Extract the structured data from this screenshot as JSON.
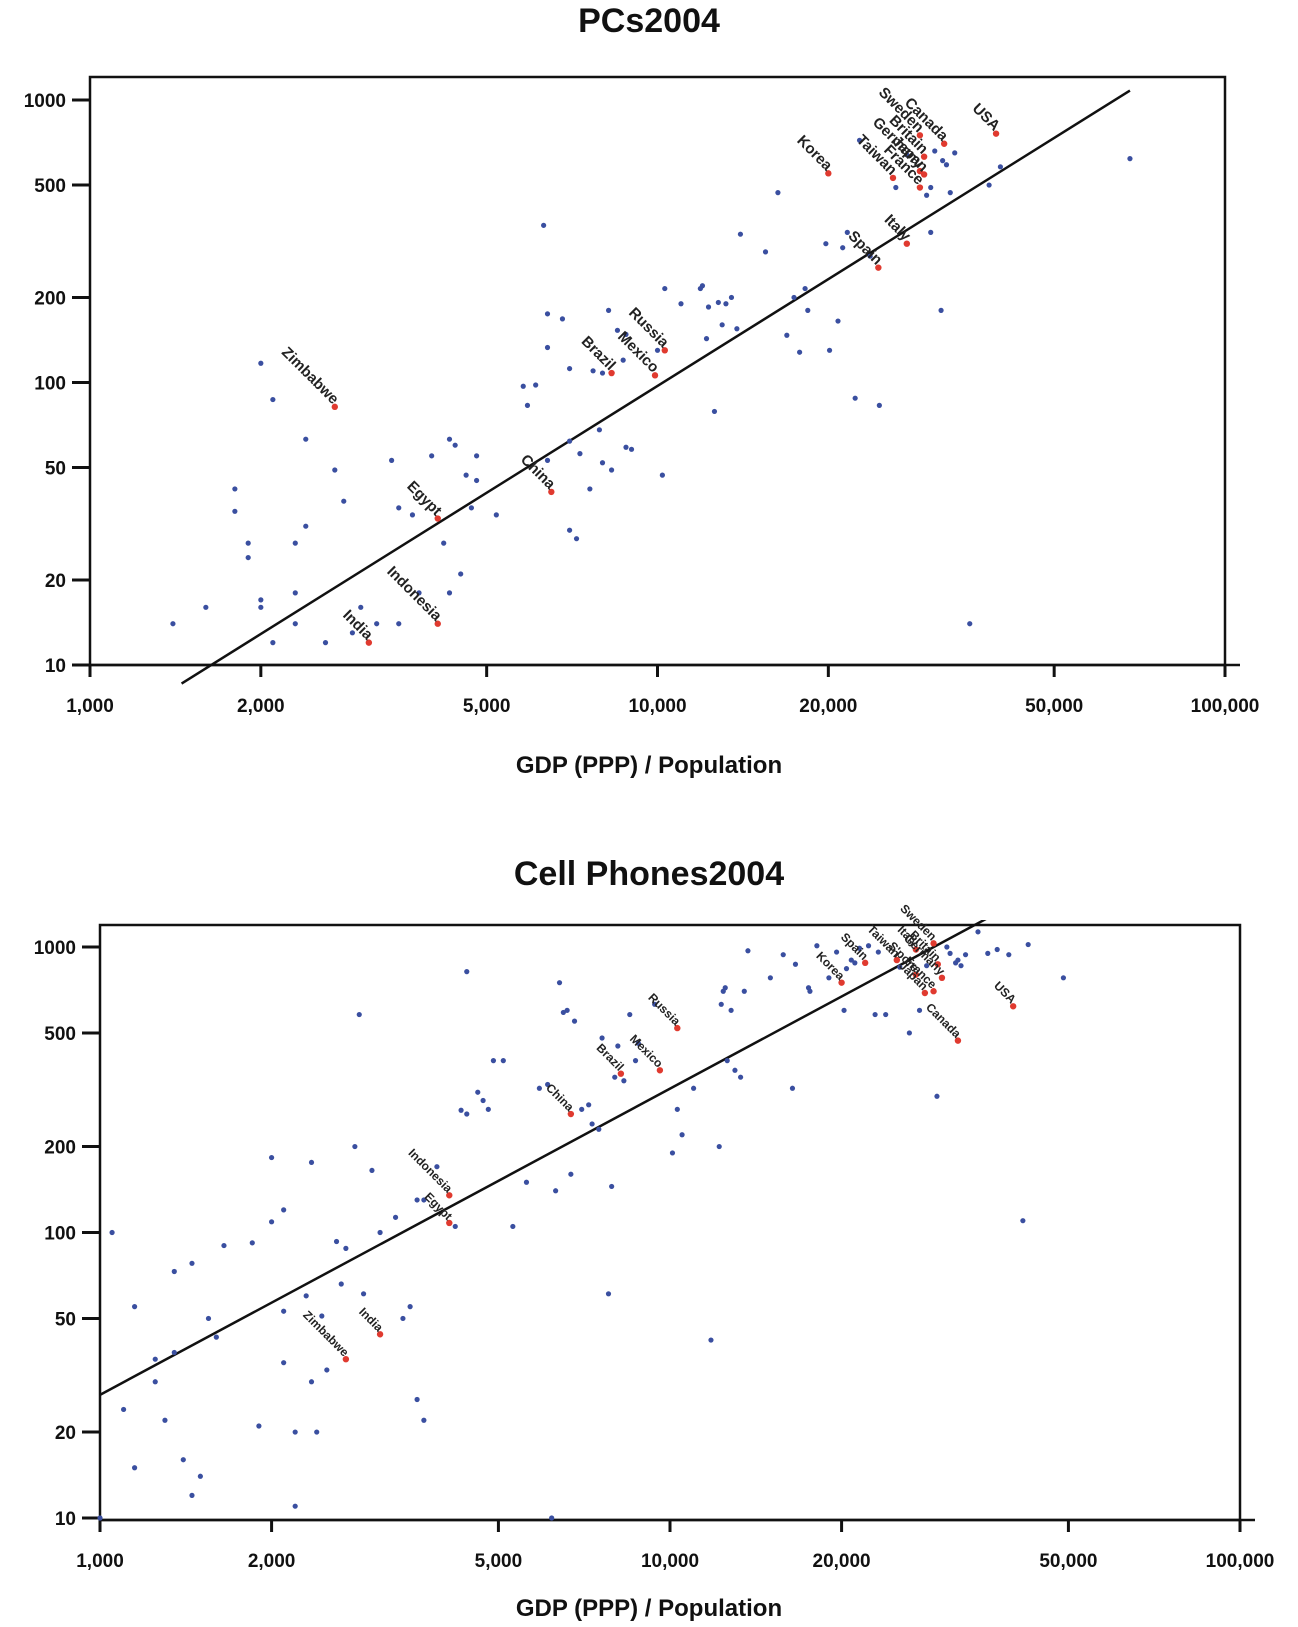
{
  "chart_data": [
    {
      "type": "scatter",
      "title": "PCs2004",
      "xlabel": "GDP (PPP) / Population",
      "ylabel": "",
      "x_scale": "log",
      "y_scale": "log",
      "xlim": [
        1000,
        100000
      ],
      "ylim": [
        10,
        1300
      ],
      "xticks": [
        "1,000",
        "2,000",
        "5,000",
        "10,000",
        "20,000",
        "50,000",
        "100,000"
      ],
      "xtick_values": [
        1000,
        2000,
        5000,
        10000,
        20000,
        50000,
        100000
      ],
      "yticks": [
        "10",
        "20",
        "50",
        "100",
        "200",
        "500",
        "1000"
      ],
      "ytick_values": [
        10,
        20,
        50,
        100,
        200,
        500,
        1000
      ],
      "grid": false,
      "colors": {
        "highlight": "#e03a2f",
        "other": "#3a4fa0",
        "line": "#111111"
      },
      "trend_line": {
        "x": [
          1450,
          68000
        ],
        "y": [
          8.6,
          1080
        ]
      },
      "highlighted": [
        {
          "label": "Sweden",
          "x": 29000,
          "y": 750
        },
        {
          "label": "Britain",
          "x": 29500,
          "y": 630
        },
        {
          "label": "Germany",
          "x": 29000,
          "y": 560
        },
        {
          "label": "Japan",
          "x": 29500,
          "y": 545
        },
        {
          "label": "Canada",
          "x": 32000,
          "y": 700
        },
        {
          "label": "USA",
          "x": 39500,
          "y": 760
        },
        {
          "label": "Korea",
          "x": 20000,
          "y": 550
        },
        {
          "label": "Taiwan",
          "x": 26000,
          "y": 530
        },
        {
          "label": "France",
          "x": 29000,
          "y": 490
        },
        {
          "label": "Italy",
          "x": 27500,
          "y": 310
        },
        {
          "label": "Spain",
          "x": 24500,
          "y": 255
        },
        {
          "label": "Russia",
          "x": 10300,
          "y": 130
        },
        {
          "label": "Mexico",
          "x": 9900,
          "y": 106
        },
        {
          "label": "Brazil",
          "x": 8300,
          "y": 108
        },
        {
          "label": "Zimbabwe",
          "x": 2700,
          "y": 82
        },
        {
          "label": "China",
          "x": 6500,
          "y": 41
        },
        {
          "label": "Egypt",
          "x": 4100,
          "y": 33
        },
        {
          "label": "Indonesia",
          "x": 4100,
          "y": 14
        },
        {
          "label": "India",
          "x": 3100,
          "y": 12
        }
      ],
      "other_points": [
        [
          1400,
          14
        ],
        [
          1600,
          16
        ],
        [
          1800,
          42
        ],
        [
          1800,
          35
        ],
        [
          1900,
          27
        ],
        [
          1900,
          24
        ],
        [
          2000,
          16
        ],
        [
          2000,
          17
        ],
        [
          2000,
          117
        ],
        [
          2100,
          12
        ],
        [
          2100,
          87
        ],
        [
          2300,
          18
        ],
        [
          2300,
          14
        ],
        [
          2300,
          27
        ],
        [
          2400,
          31
        ],
        [
          2400,
          63
        ],
        [
          2600,
          12
        ],
        [
          2700,
          49
        ],
        [
          2800,
          38
        ],
        [
          2900,
          13
        ],
        [
          3000,
          16
        ],
        [
          3200,
          14
        ],
        [
          3400,
          53
        ],
        [
          3500,
          36
        ],
        [
          3500,
          14
        ],
        [
          3700,
          34
        ],
        [
          3800,
          18
        ],
        [
          4000,
          55
        ],
        [
          4200,
          27
        ],
        [
          4300,
          18
        ],
        [
          4300,
          63
        ],
        [
          4400,
          60
        ],
        [
          4500,
          21
        ],
        [
          4600,
          47
        ],
        [
          4700,
          36
        ],
        [
          4800,
          55
        ],
        [
          4800,
          45
        ],
        [
          5200,
          34
        ],
        [
          5800,
          97
        ],
        [
          5900,
          83
        ],
        [
          6100,
          98
        ],
        [
          6300,
          360
        ],
        [
          6400,
          175
        ],
        [
          6400,
          133
        ],
        [
          6400,
          53
        ],
        [
          6800,
          168
        ],
        [
          7000,
          112
        ],
        [
          7000,
          30
        ],
        [
          7000,
          62
        ],
        [
          7200,
          28
        ],
        [
          7300,
          56
        ],
        [
          7600,
          42
        ],
        [
          7700,
          110
        ],
        [
          7900,
          68
        ],
        [
          8000,
          108
        ],
        [
          8000,
          52
        ],
        [
          8200,
          180
        ],
        [
          8300,
          49
        ],
        [
          8500,
          153
        ],
        [
          8700,
          120
        ],
        [
          8800,
          148
        ],
        [
          8800,
          59
        ],
        [
          9000,
          58
        ],
        [
          10000,
          130
        ],
        [
          10200,
          47
        ],
        [
          10300,
          215
        ],
        [
          11000,
          190
        ],
        [
          11900,
          215
        ],
        [
          12000,
          220
        ],
        [
          12200,
          143
        ],
        [
          12300,
          185
        ],
        [
          12600,
          79
        ],
        [
          12800,
          192
        ],
        [
          13000,
          160
        ],
        [
          13200,
          190
        ],
        [
          13500,
          200
        ],
        [
          13800,
          155
        ],
        [
          14000,
          335
        ],
        [
          15500,
          290
        ],
        [
          16300,
          470
        ],
        [
          16900,
          147
        ],
        [
          17400,
          200
        ],
        [
          17800,
          128
        ],
        [
          18200,
          215
        ],
        [
          18400,
          180
        ],
        [
          19800,
          310
        ],
        [
          20100,
          130
        ],
        [
          20800,
          165
        ],
        [
          21200,
          300
        ],
        [
          21600,
          340
        ],
        [
          22300,
          88
        ],
        [
          22700,
          720
        ],
        [
          23700,
          280
        ],
        [
          24600,
          83
        ],
        [
          26300,
          490
        ],
        [
          27500,
          640
        ],
        [
          29800,
          460
        ],
        [
          30300,
          490
        ],
        [
          30300,
          340
        ],
        [
          30800,
          660
        ],
        [
          31600,
          180
        ],
        [
          31800,
          610
        ],
        [
          32300,
          590
        ],
        [
          32800,
          470
        ],
        [
          33400,
          650
        ],
        [
          35500,
          14
        ],
        [
          38400,
          500
        ],
        [
          40200,
          580
        ],
        [
          68000,
          620
        ]
      ]
    },
    {
      "type": "scatter",
      "title": "Cell Phones2004",
      "xlabel": "GDP (PPP) / Population",
      "ylabel": "",
      "x_scale": "log",
      "y_scale": "log",
      "xlim": [
        1000,
        100000
      ],
      "ylim": [
        10,
        1300
      ],
      "xticks": [
        "1,000",
        "2,000",
        "5,000",
        "10,000",
        "20,000",
        "50,000",
        "100,000"
      ],
      "xtick_values": [
        1000,
        2000,
        5000,
        10000,
        20000,
        50000,
        100000
      ],
      "yticks": [
        "10",
        "20",
        "50",
        "100",
        "200",
        "500",
        "1000"
      ],
      "ytick_values": [
        10,
        20,
        50,
        100,
        200,
        500,
        1000
      ],
      "grid": false,
      "colors": {
        "highlight": "#e03a2f",
        "other": "#3a4fa0",
        "line": "#111111"
      },
      "trend_line": {
        "x": [
          1000,
          36000
        ],
        "y": [
          27,
          1260
        ]
      },
      "highlighted": [
        {
          "label": "Taiwan",
          "x": 25000,
          "y": 900
        },
        {
          "label": "Italy",
          "x": 27000,
          "y": 980
        },
        {
          "label": "Sweden",
          "x": 29000,
          "y": 1030
        },
        {
          "label": "Britain",
          "x": 29500,
          "y": 870
        },
        {
          "label": "Spain",
          "x": 22000,
          "y": 880
        },
        {
          "label": "Korea",
          "x": 20000,
          "y": 750
        },
        {
          "label": "S'pore",
          "x": 27000,
          "y": 800
        },
        {
          "label": "Germany",
          "x": 30000,
          "y": 780
        },
        {
          "label": "France",
          "x": 29000,
          "y": 700
        },
        {
          "label": "Japan",
          "x": 28000,
          "y": 690
        },
        {
          "label": "USA",
          "x": 40000,
          "y": 620
        },
        {
          "label": "Canada",
          "x": 32000,
          "y": 470
        },
        {
          "label": "Russia",
          "x": 10300,
          "y": 520
        },
        {
          "label": "Mexico",
          "x": 9600,
          "y": 370
        },
        {
          "label": "Brazil",
          "x": 8200,
          "y": 360
        },
        {
          "label": "China",
          "x": 6700,
          "y": 260
        },
        {
          "label": "Indonesia",
          "x": 4100,
          "y": 135
        },
        {
          "label": "Egypt",
          "x": 4100,
          "y": 108
        },
        {
          "label": "India",
          "x": 3100,
          "y": 44
        },
        {
          "label": "Zimbabwe",
          "x": 2700,
          "y": 36
        }
      ],
      "other_points": [
        [
          1050,
          100
        ],
        [
          1100,
          24
        ],
        [
          1150,
          15
        ],
        [
          1150,
          55
        ],
        [
          1250,
          30
        ],
        [
          1250,
          36
        ],
        [
          1300,
          22
        ],
        [
          1350,
          73
        ],
        [
          1350,
          38
        ],
        [
          1400,
          16
        ],
        [
          1450,
          12
        ],
        [
          1450,
          78
        ],
        [
          1500,
          14
        ],
        [
          1550,
          50
        ],
        [
          1600,
          43
        ],
        [
          1650,
          90
        ],
        [
          1850,
          92
        ],
        [
          1900,
          21
        ],
        [
          2000,
          109
        ],
        [
          2000,
          183
        ],
        [
          2100,
          120
        ],
        [
          2100,
          35
        ],
        [
          2100,
          53
        ],
        [
          2200,
          11
        ],
        [
          2200,
          20
        ],
        [
          2300,
          60
        ],
        [
          2350,
          30
        ],
        [
          2350,
          176
        ],
        [
          2400,
          20
        ],
        [
          2450,
          51
        ],
        [
          2500,
          33
        ],
        [
          2600,
          93
        ],
        [
          2650,
          66
        ],
        [
          2700,
          88
        ],
        [
          2800,
          200
        ],
        [
          2850,
          580
        ],
        [
          2900,
          61
        ],
        [
          3000,
          165
        ],
        [
          3100,
          100
        ],
        [
          3300,
          113
        ],
        [
          3400,
          50
        ],
        [
          3500,
          55
        ],
        [
          3600,
          26
        ],
        [
          3600,
          130
        ],
        [
          3700,
          130
        ],
        [
          3700,
          22
        ],
        [
          3900,
          170
        ],
        [
          4100,
          135
        ],
        [
          4200,
          105
        ],
        [
          4300,
          268
        ],
        [
          4400,
          260
        ],
        [
          4400,
          820
        ],
        [
          4600,
          310
        ],
        [
          4700,
          290
        ],
        [
          4800,
          270
        ],
        [
          4900,
          400
        ],
        [
          5100,
          400
        ],
        [
          5300,
          105
        ],
        [
          5600,
          150
        ],
        [
          5900,
          320
        ],
        [
          6100,
          330
        ],
        [
          6300,
          140
        ],
        [
          6400,
          750
        ],
        [
          6500,
          590
        ],
        [
          6600,
          600
        ],
        [
          6700,
          160
        ],
        [
          6800,
          550
        ],
        [
          7000,
          270
        ],
        [
          7200,
          280
        ],
        [
          7300,
          240
        ],
        [
          7500,
          230
        ],
        [
          7600,
          480
        ],
        [
          7800,
          61
        ],
        [
          7900,
          145
        ],
        [
          8000,
          350
        ],
        [
          8100,
          450
        ],
        [
          8300,
          340
        ],
        [
          8500,
          580
        ],
        [
          8700,
          400
        ],
        [
          8800,
          460
        ],
        [
          9400,
          630
        ],
        [
          10100,
          190
        ],
        [
          10300,
          270
        ],
        [
          10500,
          220
        ],
        [
          11000,
          320
        ],
        [
          11800,
          42
        ],
        [
          12200,
          200
        ],
        [
          12300,
          630
        ],
        [
          12400,
          700
        ],
        [
          12500,
          720
        ],
        [
          12600,
          400
        ],
        [
          12800,
          600
        ],
        [
          13000,
          370
        ],
        [
          13300,
          350
        ],
        [
          13500,
          700
        ],
        [
          13700,
          970
        ],
        [
          15000,
          780
        ],
        [
          15800,
          940
        ],
        [
          16400,
          320
        ],
        [
          16600,
          870
        ],
        [
          17500,
          720
        ],
        [
          17600,
          700
        ],
        [
          18100,
          1010
        ],
        [
          19000,
          780
        ],
        [
          19600,
          960
        ],
        [
          20200,
          600
        ],
        [
          20400,
          840
        ],
        [
          20800,
          900
        ],
        [
          21100,
          880
        ],
        [
          21500,
          990
        ],
        [
          22300,
          1010
        ],
        [
          22900,
          580
        ],
        [
          23200,
          960
        ],
        [
          23900,
          580
        ],
        [
          25300,
          850
        ],
        [
          26300,
          500
        ],
        [
          27400,
          600
        ],
        [
          28200,
          860
        ],
        [
          29400,
          300
        ],
        [
          30600,
          1000
        ],
        [
          31000,
          950
        ],
        [
          31700,
          880
        ],
        [
          32000,
          900
        ],
        [
          32400,
          860
        ],
        [
          33000,
          940
        ],
        [
          34700,
          1130
        ],
        [
          36100,
          950
        ],
        [
          37500,
          980
        ],
        [
          39300,
          940
        ],
        [
          41600,
          110
        ],
        [
          42500,
          1020
        ],
        [
          49000,
          780
        ],
        [
          1000,
          10
        ],
        [
          6200,
          10
        ]
      ]
    }
  ]
}
